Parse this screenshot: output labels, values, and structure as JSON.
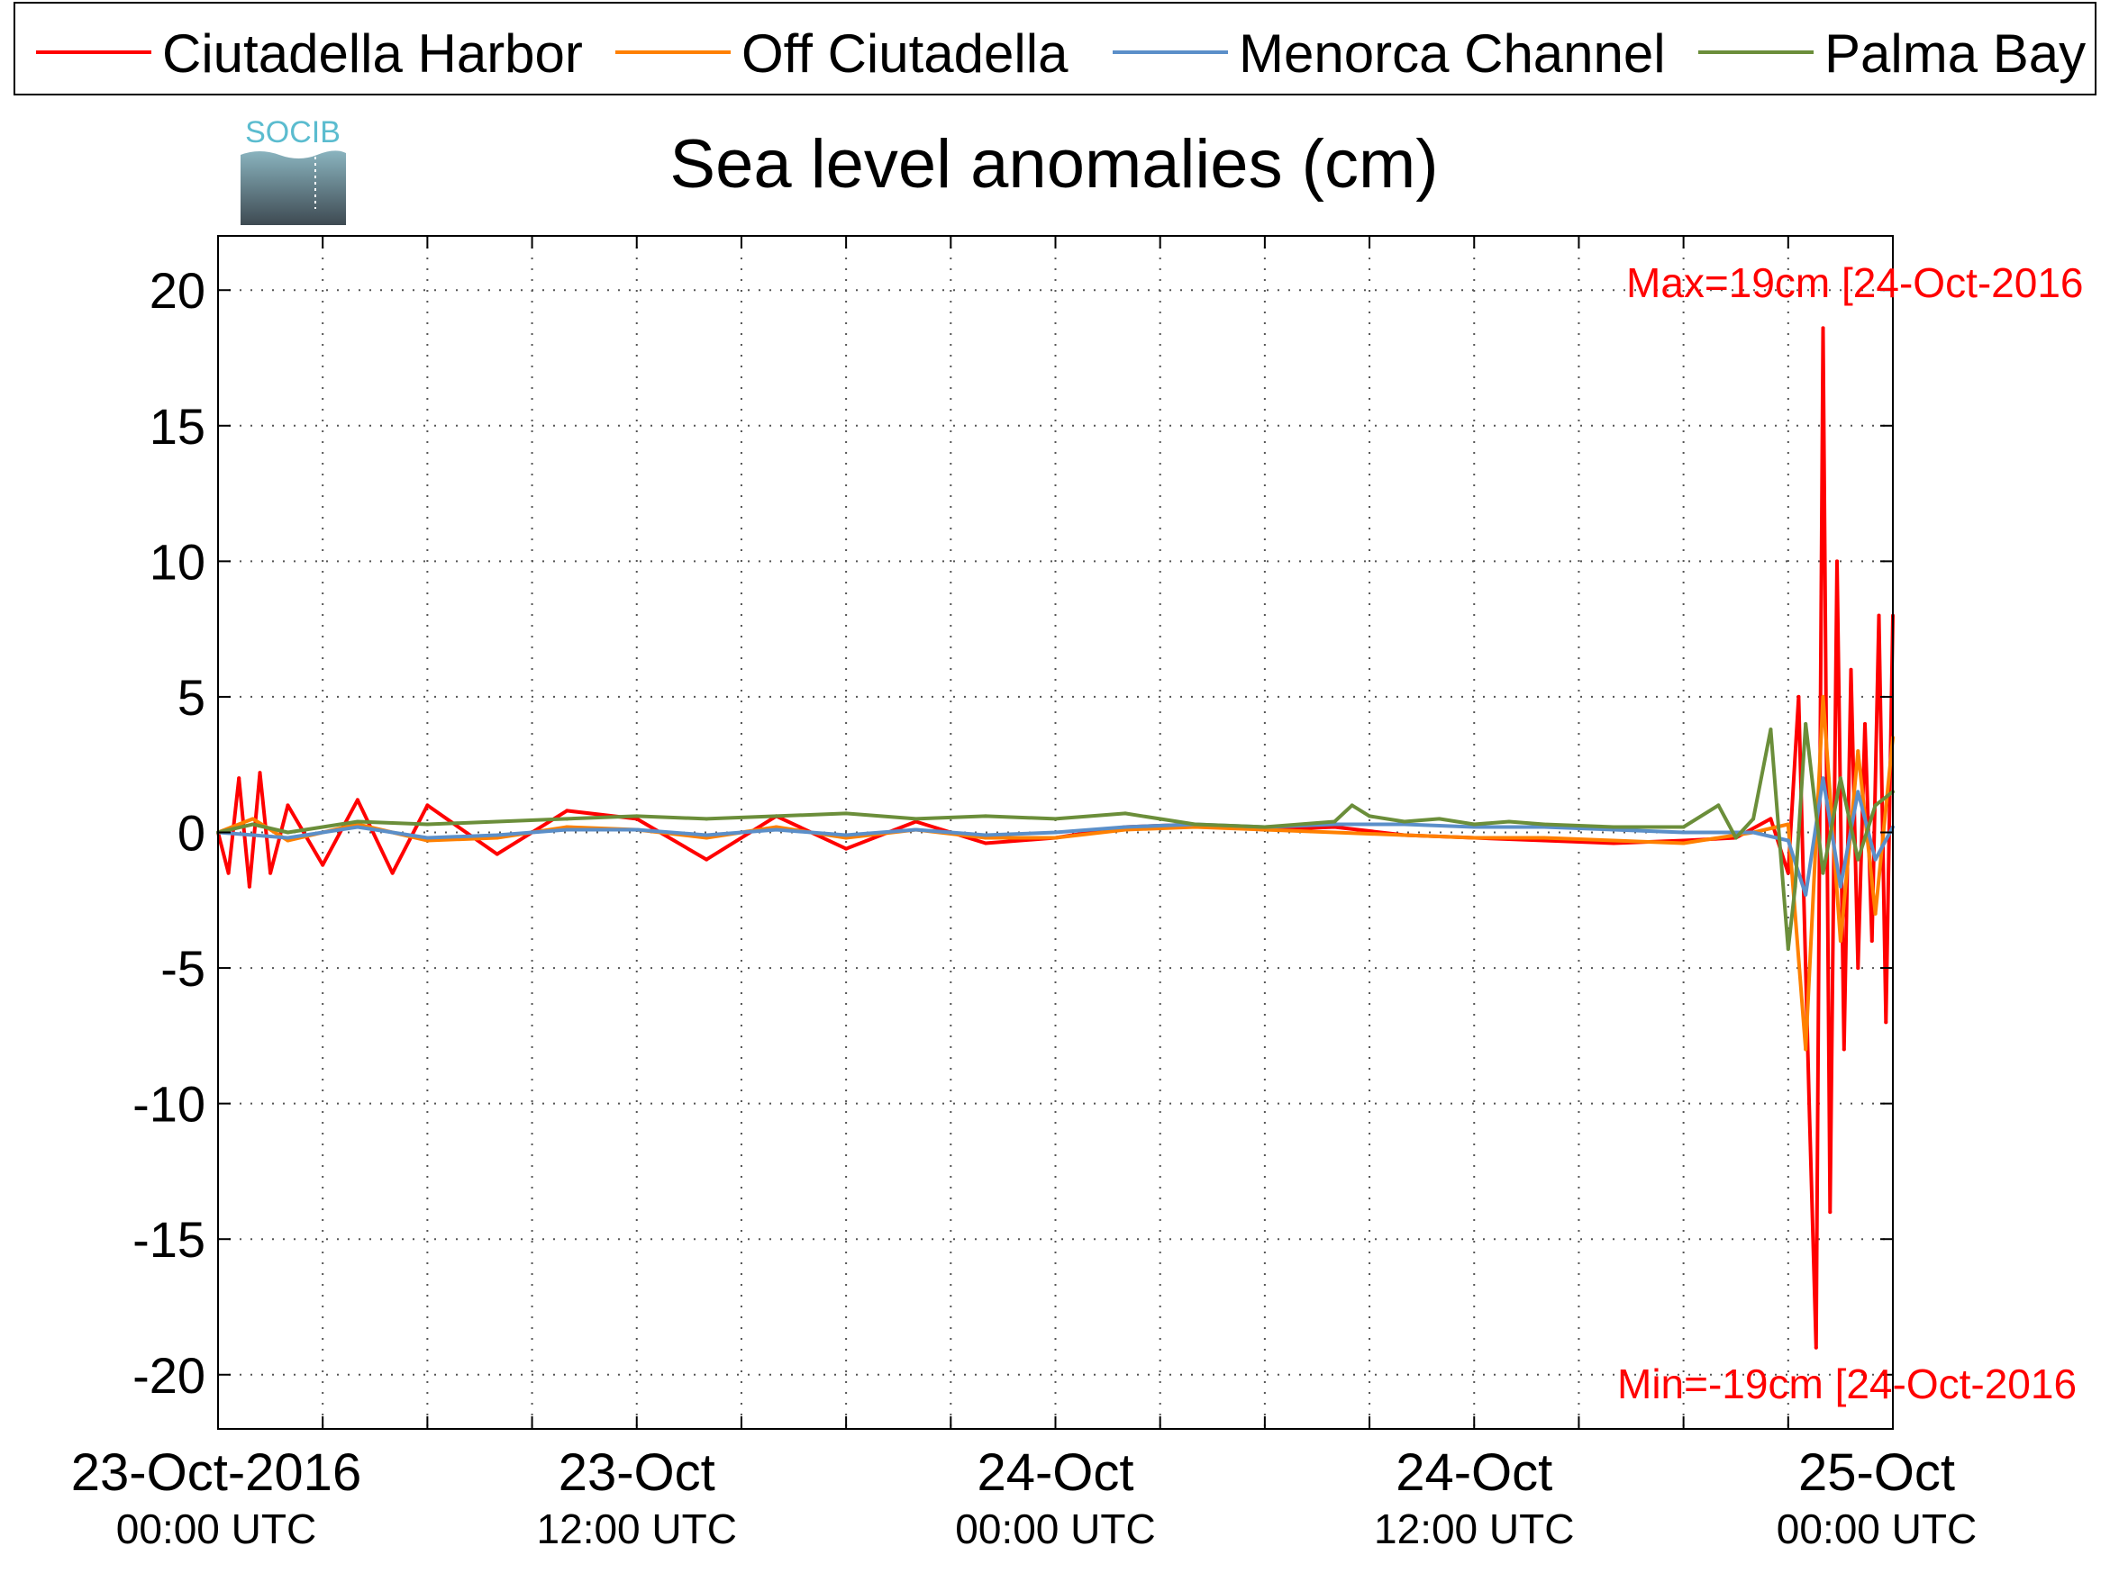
{
  "chart_data": {
    "type": "line",
    "title": "Sea level anomalies (cm)",
    "logo_text": "SOCIB",
    "xlabel": "",
    "ylabel": "",
    "x_range": [
      "2016-10-23 00:00",
      "2016-10-25 00:00"
    ],
    "ylim": [
      -22,
      22
    ],
    "y_ticks": [
      20,
      15,
      10,
      5,
      0,
      -5,
      -10,
      -15,
      -20
    ],
    "y_tick_labels": [
      "20",
      "15",
      "10",
      "5",
      "0",
      "-5",
      "-10",
      "-15",
      "-20"
    ],
    "x_ticks": [
      {
        "hour": 0,
        "date": "23-Oct-2016",
        "time": "00:00 UTC"
      },
      {
        "hour": 12,
        "date": "23-Oct",
        "time": "12:00 UTC"
      },
      {
        "hour": 24,
        "date": "24-Oct",
        "time": "00:00 UTC"
      },
      {
        "hour": 36,
        "date": "24-Oct",
        "time": "12:00 UTC"
      },
      {
        "hour": 48,
        "date": "25-Oct",
        "time": "00:00 UTC"
      }
    ],
    "grid": true,
    "legend_position": "top",
    "series": [
      {
        "name": "Ciutadella Harbor",
        "color": "#ff0000",
        "x": [
          0,
          0.3,
          0.6,
          0.9,
          1.2,
          1.5,
          2,
          3,
          4,
          5,
          6,
          8,
          10,
          12,
          14,
          16,
          18,
          20,
          22,
          24,
          26,
          28,
          30,
          32,
          34,
          36,
          38,
          40,
          42,
          43.5,
          44.5,
          45,
          45.3,
          45.6,
          45.8,
          46,
          46.2,
          46.4,
          46.6,
          46.8,
          47,
          47.2,
          47.4,
          47.6,
          47.8,
          48
        ],
        "y": [
          0,
          -1.5,
          2,
          -2,
          2.2,
          -1.5,
          1,
          -1.2,
          1.2,
          -1.5,
          1,
          -0.8,
          0.8,
          0.5,
          -1,
          0.6,
          -0.6,
          0.4,
          -0.4,
          -0.2,
          0.2,
          0.3,
          0.1,
          0.2,
          -0.1,
          -0.2,
          -0.3,
          -0.4,
          -0.3,
          -0.2,
          0.5,
          -1.5,
          5,
          -10,
          -19,
          18.6,
          -14,
          10,
          -8,
          6,
          -5,
          4,
          -4,
          8,
          -7,
          8
        ]
      },
      {
        "name": "Off Ciutadella",
        "color": "#ff8000",
        "x": [
          0,
          1,
          2,
          4,
          6,
          8,
          10,
          12,
          14,
          16,
          18,
          20,
          22,
          24,
          26,
          28,
          30,
          32,
          34,
          36,
          38,
          40,
          42,
          44,
          45,
          45.5,
          46,
          46.5,
          47,
          47.5,
          48
        ],
        "y": [
          0,
          0.5,
          -0.3,
          0.3,
          -0.3,
          -0.2,
          0.2,
          0.1,
          -0.2,
          0.2,
          -0.2,
          0.1,
          -0.2,
          -0.2,
          0.1,
          0.2,
          0.1,
          0,
          -0.1,
          -0.2,
          -0.2,
          -0.3,
          -0.4,
          0,
          0.3,
          -8,
          5,
          -4,
          3,
          -3,
          3.5
        ]
      },
      {
        "name": "Menorca Channel",
        "color": "#5b8fc9",
        "x": [
          0,
          2,
          4,
          6,
          8,
          10,
          12,
          14,
          16,
          18,
          20,
          22,
          24,
          26,
          28,
          30,
          32,
          34,
          36,
          38,
          40,
          42,
          44,
          45,
          45.5,
          46,
          46.5,
          47,
          47.5,
          48
        ],
        "y": [
          0,
          -0.2,
          0.2,
          -0.2,
          -0.1,
          0.1,
          0.1,
          -0.1,
          0.1,
          -0.1,
          0.1,
          -0.1,
          0,
          0.2,
          0.3,
          0.2,
          0.3,
          0.3,
          0.2,
          0.2,
          0.1,
          0,
          0,
          -0.3,
          -2.3,
          2,
          -2,
          1.5,
          -1,
          0.2
        ]
      },
      {
        "name": "Palma Bay",
        "color": "#6b8e3a",
        "x": [
          0,
          1,
          2,
          4,
          6,
          8,
          10,
          12,
          14,
          16,
          18,
          20,
          22,
          24,
          26,
          28,
          30,
          32,
          32.5,
          33,
          34,
          35,
          36,
          37,
          38,
          40,
          42,
          43,
          43.5,
          44,
          44.5,
          45,
          45.2,
          45.5,
          46,
          46.5,
          47,
          47.5,
          48
        ],
        "y": [
          0,
          0.3,
          0,
          0.4,
          0.3,
          0.4,
          0.5,
          0.6,
          0.5,
          0.6,
          0.7,
          0.5,
          0.6,
          0.5,
          0.7,
          0.3,
          0.2,
          0.4,
          1,
          0.6,
          0.4,
          0.5,
          0.3,
          0.4,
          0.3,
          0.2,
          0.2,
          1,
          -0.2,
          0.5,
          3.8,
          -4.3,
          -2,
          4,
          -1.5,
          2,
          -1,
          1,
          1.5
        ]
      }
    ],
    "annotations": [
      {
        "text": "Max=19cm [24-Oct-2016",
        "color": "#ff0000"
      },
      {
        "text": "Min=-19cm [24-Oct-2016",
        "color": "#ff0000"
      }
    ]
  }
}
